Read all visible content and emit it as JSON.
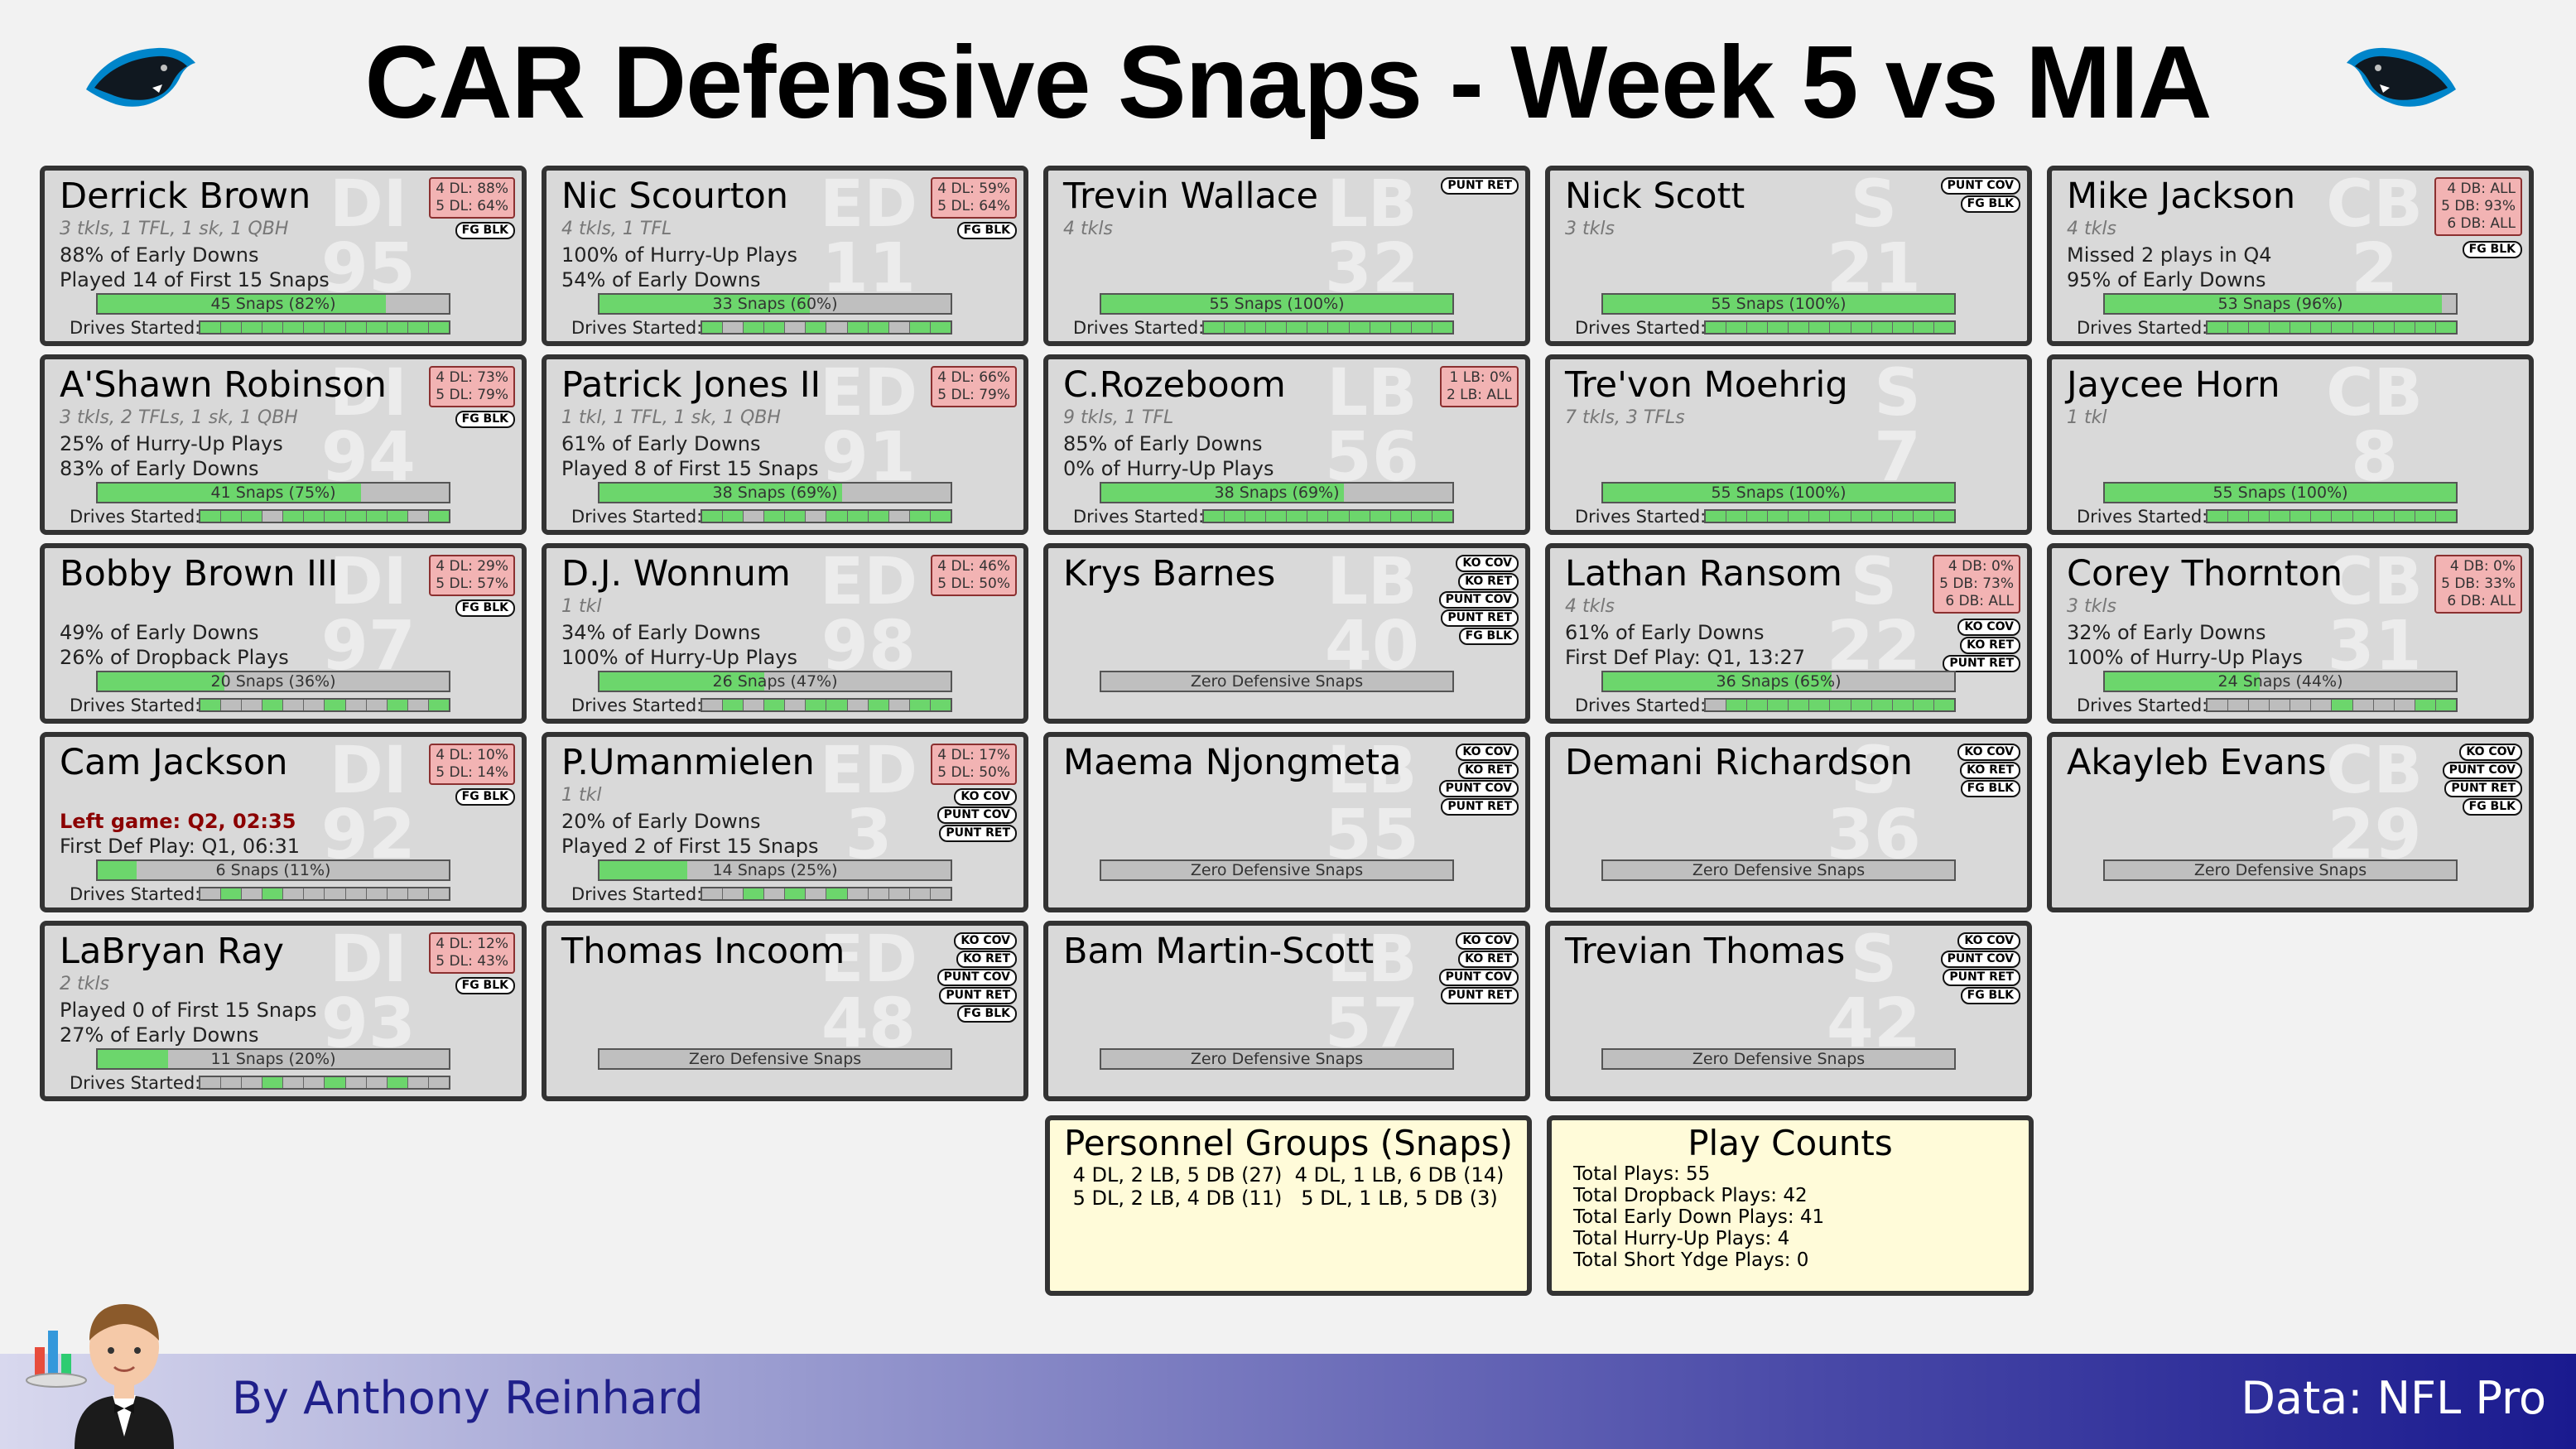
{
  "title": "CAR Defensive Snaps - Week 5 vs MIA",
  "drives_label": "Drives Started:",
  "zero_label": "Zero Defensive Snaps",
  "players": [
    {
      "name": "Derrick Brown",
      "pos": "DI",
      "num": "95",
      "stats": "3 tkls, 1 TFL, 1 sk, 1 QBH",
      "notes": [
        "88% of Early Downs",
        "Played 14 of First 15 Snaps"
      ],
      "pct": [
        "4 DL: 88%",
        "5 DL: 64%"
      ],
      "roles": [
        "FG BLK"
      ],
      "snaps_text": "45 Snaps (82%)",
      "snap_frac": 0.82,
      "drives": [
        1,
        1,
        1,
        1,
        1,
        1,
        1,
        1,
        1,
        1,
        1,
        1
      ]
    },
    {
      "name": "A'Shawn Robinson",
      "pos": "DI",
      "num": "94",
      "stats": "3 tkls, 2 TFLs, 1 sk, 1 QBH",
      "notes": [
        "25% of Hurry-Up Plays",
        "83% of Early Downs"
      ],
      "pct": [
        "4 DL: 73%",
        "5 DL: 79%"
      ],
      "roles": [
        "FG BLK"
      ],
      "snaps_text": "41 Snaps (75%)",
      "snap_frac": 0.75,
      "drives": [
        1,
        1,
        1,
        0,
        1,
        1,
        1,
        1,
        1,
        1,
        0,
        1
      ]
    },
    {
      "name": "Bobby Brown III",
      "pos": "DI",
      "num": "97",
      "stats": "",
      "notes": [
        "49% of Early Downs",
        "26% of Dropback Plays"
      ],
      "pct": [
        "4 DL: 29%",
        "5 DL: 57%"
      ],
      "roles": [
        "FG BLK"
      ],
      "snaps_text": "20 Snaps (36%)",
      "snap_frac": 0.36,
      "drives": [
        1,
        0,
        0,
        1,
        0,
        0,
        1,
        0,
        0,
        1,
        0,
        1
      ]
    },
    {
      "name": "Cam Jackson",
      "pos": "DI",
      "num": "92",
      "stats": "",
      "notes": [
        "Left game: Q2, 02:35",
        "First Def Play: Q1, 06:31"
      ],
      "red_note": 0,
      "pct": [
        "4 DL: 10%",
        "5 DL: 14%"
      ],
      "roles": [
        "FG BLK"
      ],
      "snaps_text": "6 Snaps (11%)",
      "snap_frac": 0.11,
      "drives": [
        0,
        1,
        0,
        1,
        0,
        0,
        0,
        0,
        0,
        0,
        0,
        0
      ]
    },
    {
      "name": "LaBryan Ray",
      "pos": "DI",
      "num": "93",
      "stats": "2 tkls",
      "notes": [
        "Played 0 of First 15 Snaps",
        "27% of Early Downs"
      ],
      "pct": [
        "4 DL: 12%",
        "5 DL: 43%"
      ],
      "roles": [
        "FG BLK"
      ],
      "snaps_text": "11 Snaps (20%)",
      "snap_frac": 0.2,
      "drives": [
        0,
        0,
        0,
        1,
        0,
        0,
        1,
        0,
        0,
        1,
        0,
        0
      ]
    },
    {
      "name": "Nic Scourton",
      "pos": "ED",
      "num": "11",
      "stats": "4 tkls, 1 TFL",
      "notes": [
        "100% of Hurry-Up Plays",
        "54% of Early Downs"
      ],
      "pct": [
        "4 DL: 59%",
        "5 DL: 64%"
      ],
      "roles": [
        "FG BLK"
      ],
      "snaps_text": "33 Snaps (60%)",
      "snap_frac": 0.6,
      "drives": [
        1,
        0,
        1,
        1,
        0,
        1,
        0,
        1,
        1,
        0,
        1,
        1
      ]
    },
    {
      "name": "Patrick Jones II",
      "pos": "ED",
      "num": "91",
      "stats": "1 tkl, 1 TFL, 1 sk, 1 QBH",
      "notes": [
        "61% of Early Downs",
        "Played 8 of First 15 Snaps"
      ],
      "pct": [
        "4 DL: 66%",
        "5 DL: 79%"
      ],
      "roles": [],
      "snaps_text": "38 Snaps (69%)",
      "snap_frac": 0.69,
      "drives": [
        1,
        1,
        0,
        1,
        1,
        0,
        1,
        1,
        1,
        0,
        1,
        1
      ]
    },
    {
      "name": "D.J. Wonnum",
      "pos": "ED",
      "num": "98",
      "stats": "1 tkl",
      "notes": [
        "34% of Early Downs",
        "100% of Hurry-Up Plays"
      ],
      "pct": [
        "4 DL: 46%",
        "5 DL: 50%"
      ],
      "roles": [],
      "snaps_text": "26 Snaps (47%)",
      "snap_frac": 0.47,
      "drives": [
        0,
        1,
        0,
        1,
        0,
        1,
        1,
        0,
        1,
        0,
        1,
        1
      ]
    },
    {
      "name": "P.Umanmielen",
      "pos": "ED",
      "num": "3",
      "stats": "1 tkl",
      "notes": [
        "20% of Early Downs",
        "Played 2 of First 15 Snaps"
      ],
      "pct": [
        "4 DL: 17%",
        "5 DL: 50%"
      ],
      "roles": [
        "KO COV",
        "PUNT COV",
        "PUNT RET"
      ],
      "snaps_text": "14 Snaps (25%)",
      "snap_frac": 0.25,
      "drives": [
        0,
        0,
        1,
        0,
        1,
        0,
        1,
        0,
        0,
        0,
        0,
        0
      ]
    },
    {
      "name": "Thomas Incoom",
      "pos": "ED",
      "num": "48",
      "stats": "",
      "notes": [],
      "pct": [],
      "roles": [
        "KO COV",
        "KO RET",
        "PUNT COV",
        "PUNT RET",
        "FG BLK"
      ],
      "zero": true
    },
    {
      "name": "Trevin Wallace",
      "pos": "LB",
      "num": "32",
      "stats": "4 tkls",
      "notes": [],
      "pct": [],
      "roles": [
        "PUNT RET"
      ],
      "snaps_text": "55 Snaps (100%)",
      "snap_frac": 1.0,
      "drives": [
        1,
        1,
        1,
        1,
        1,
        1,
        1,
        1,
        1,
        1,
        1,
        1
      ]
    },
    {
      "name": "C.Rozeboom",
      "pos": "LB",
      "num": "56",
      "stats": "9 tkls, 1 TFL",
      "notes": [
        "85% of Early Downs",
        "0% of Hurry-Up Plays"
      ],
      "pct": [
        "1 LB:  0%",
        "2 LB: ALL"
      ],
      "roles": [],
      "snaps_text": "38 Snaps (69%)",
      "snap_frac": 0.69,
      "drives": [
        1,
        1,
        1,
        1,
        1,
        1,
        1,
        1,
        1,
        1,
        1,
        1
      ]
    },
    {
      "name": "Krys Barnes",
      "pos": "LB",
      "num": "40",
      "stats": "",
      "notes": [],
      "pct": [],
      "roles": [
        "KO COV",
        "KO RET",
        "PUNT COV",
        "PUNT RET",
        "FG BLK"
      ],
      "zero": true
    },
    {
      "name": "Maema Njongmeta",
      "pos": "LB",
      "num": "55",
      "stats": "",
      "notes": [],
      "pct": [],
      "roles": [
        "KO COV",
        "KO RET",
        "PUNT COV",
        "PUNT RET"
      ],
      "zero": true
    },
    {
      "name": "Bam Martin-Scott",
      "pos": "LB",
      "num": "57",
      "stats": "",
      "notes": [],
      "pct": [],
      "roles": [
        "KO COV",
        "KO RET",
        "PUNT COV",
        "PUNT RET"
      ],
      "zero": true
    },
    {
      "name": "Nick Scott",
      "pos": "S",
      "num": "21",
      "stats": "3 tkls",
      "notes": [],
      "pct": [],
      "roles": [
        "PUNT COV",
        "FG BLK"
      ],
      "snaps_text": "55 Snaps (100%)",
      "snap_frac": 1.0,
      "drives": [
        1,
        1,
        1,
        1,
        1,
        1,
        1,
        1,
        1,
        1,
        1,
        1
      ]
    },
    {
      "name": "Tre'von Moehrig",
      "pos": "S",
      "num": "7",
      "stats": "7 tkls, 3 TFLs",
      "notes": [],
      "pct": [],
      "roles": [],
      "snaps_text": "55 Snaps (100%)",
      "snap_frac": 1.0,
      "drives": [
        1,
        1,
        1,
        1,
        1,
        1,
        1,
        1,
        1,
        1,
        1,
        1
      ]
    },
    {
      "name": "Lathan Ransom",
      "pos": "S",
      "num": "22",
      "stats": "4 tkls",
      "notes": [
        "61% of Early Downs",
        "First Def Play: Q1, 13:27"
      ],
      "pct": [
        "4 DB:  0%",
        "5 DB: 73%",
        "6 DB: ALL"
      ],
      "roles": [
        "KO COV",
        "KO RET",
        "PUNT RET"
      ],
      "snaps_text": "36 Snaps (65%)",
      "snap_frac": 0.65,
      "drives": [
        0,
        1,
        1,
        1,
        1,
        1,
        1,
        1,
        1,
        1,
        1,
        1
      ]
    },
    {
      "name": "Demani Richardson",
      "pos": "S",
      "num": "36",
      "stats": "",
      "notes": [],
      "pct": [],
      "roles": [
        "KO COV",
        "KO RET",
        "FG BLK"
      ],
      "zero": true
    },
    {
      "name": "Trevian Thomas",
      "pos": "S",
      "num": "42",
      "stats": "",
      "notes": [],
      "pct": [],
      "roles": [
        "KO COV",
        "PUNT COV",
        "PUNT RET",
        "FG BLK"
      ],
      "zero": true
    },
    {
      "name": "Mike Jackson",
      "pos": "CB",
      "num": "2",
      "stats": "4 tkls",
      "notes": [
        "Missed 2 plays in Q4",
        "95% of Early Downs"
      ],
      "pct": [
        "4 DB: ALL",
        "5 DB: 93%",
        "6 DB: ALL"
      ],
      "roles": [
        "FG BLK"
      ],
      "snaps_text": "53 Snaps (96%)",
      "snap_frac": 0.96,
      "drives": [
        1,
        1,
        1,
        1,
        1,
        1,
        1,
        1,
        1,
        1,
        1,
        1
      ]
    },
    {
      "name": "Jaycee Horn",
      "pos": "CB",
      "num": "8",
      "stats": "1 tkl",
      "notes": [],
      "pct": [],
      "roles": [],
      "snaps_text": "55 Snaps (100%)",
      "snap_frac": 1.0,
      "drives": [
        1,
        1,
        1,
        1,
        1,
        1,
        1,
        1,
        1,
        1,
        1,
        1
      ]
    },
    {
      "name": "Corey Thornton",
      "pos": "CB",
      "num": "31",
      "stats": "3 tkls",
      "notes": [
        "32% of Early Downs",
        "100% of Hurry-Up Plays"
      ],
      "pct": [
        "4 DB:  0%",
        "5 DB: 33%",
        "6 DB: ALL"
      ],
      "roles": [],
      "snaps_text": "24 Snaps (44%)",
      "snap_frac": 0.44,
      "drives": [
        0,
        0,
        0,
        0,
        0,
        0,
        1,
        0,
        0,
        0,
        1,
        1
      ]
    },
    {
      "name": "Akayleb Evans",
      "pos": "CB",
      "num": "29",
      "stats": "",
      "notes": [],
      "pct": [],
      "roles": [
        "KO COV",
        "PUNT COV",
        "PUNT RET",
        "FG BLK"
      ],
      "zero": true
    }
  ],
  "personnel": {
    "title": "Personnel Groups (Snaps)",
    "items": [
      "4 DL, 2 LB, 5 DB (27)",
      "4 DL, 1 LB, 6 DB (14)",
      "5 DL, 2 LB, 4 DB (11)",
      "5 DL, 1 LB, 5 DB (3)"
    ]
  },
  "play_counts": {
    "title": "Play Counts",
    "items": [
      "Total Plays: 55",
      "Total Dropback Plays: 42",
      "Total Early Down Plays: 41",
      "Total Hurry-Up Plays: 4",
      "Total Short Ydge Plays: 0"
    ]
  },
  "footer": {
    "byline": "By Anthony Reinhard",
    "source": "Data: NFL Pro"
  },
  "colors": {
    "snap_fill": "#6cd66c",
    "pct_box": "#f2b3b3",
    "summary_bg": "#fffbd9",
    "left_note": "#8b0000"
  },
  "icons": {
    "team_logo": "panther-logo-icon",
    "mascot": "waiter-mascot-icon"
  }
}
